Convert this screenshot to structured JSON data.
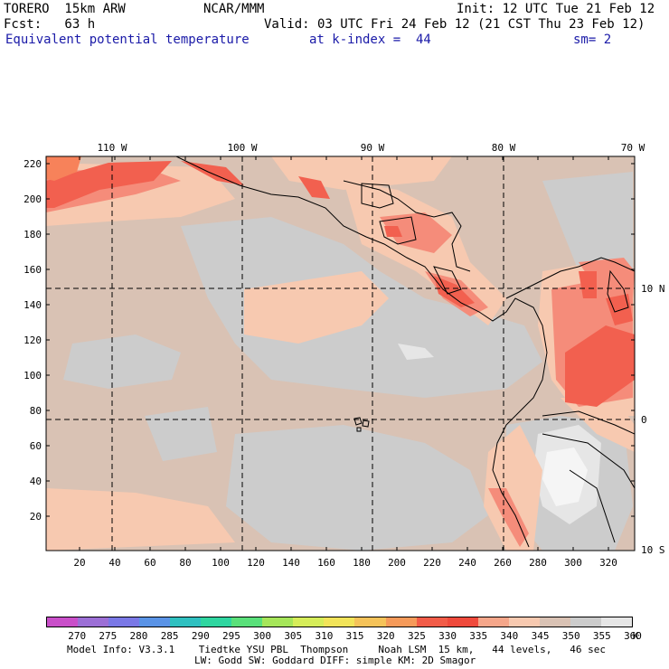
{
  "header": {
    "line1_left": "TORERO  15km ARW",
    "line1_mid": "NCAR/MMM",
    "line1_right": "Init: 12 UTC Tue 21 Feb 12",
    "line2_left": "Fcst:   63 h",
    "line2_right": "Valid: 03 UTC Fri 24 Feb 12 (21 CST Thu 23 Feb 12)",
    "line3_field": "Equivalent potential temperature",
    "line3_level": "at k-index =  44",
    "line3_sm": "sm= 2"
  },
  "map": {
    "top_lon_labels": [
      "110 W",
      "100 W",
      "90 W",
      "80 W",
      "70 W"
    ],
    "right_lat_labels": [
      "10 N",
      "0",
      "10 S"
    ],
    "left_y_ticks": [
      "220",
      "200",
      "180",
      "160",
      "140",
      "120",
      "100",
      "80",
      "60",
      "40",
      "20"
    ],
    "bottom_x_ticks": [
      "20",
      "40",
      "60",
      "80",
      "100",
      "120",
      "140",
      "160",
      "180",
      "200",
      "220",
      "240",
      "260",
      "280",
      "300",
      "320"
    ],
    "colors": {
      "c340": "#f7c9b0",
      "c345": "#d9c2b4",
      "c350": "#cccccc",
      "c355": "#e6e6e6",
      "c330": "#f2604f",
      "c335": "#f58c7a",
      "c325": "#f7825a",
      "c360": "#f5f5f5"
    }
  },
  "colorbar": {
    "labels": [
      "270",
      "275",
      "280",
      "285",
      "290",
      "295",
      "300",
      "305",
      "310",
      "315",
      "320",
      "325",
      "330",
      "335",
      "340",
      "345",
      "350",
      "355",
      "360",
      "K"
    ],
    "colors": [
      "#c94fc9",
      "#9c6fd6",
      "#7a78e6",
      "#5a93e6",
      "#2fc0c0",
      "#2fd6a0",
      "#5ae07a",
      "#a6e65a",
      "#d6ed5a",
      "#f2e45a",
      "#f5c35a",
      "#f59a5a",
      "#f25c48",
      "#ef4a3c",
      "#f5a68a",
      "#f7c9b0",
      "#d9c2b4",
      "#cccccc",
      "#e6e6e6",
      "#ffffff"
    ]
  },
  "footer": {
    "line1": "Model Info: V3.3.1    Tiedtke YSU PBL  Thompson     Noah LSM  15 km,   44 levels,   46 sec",
    "line2": "LW: Godd SW: Goddard DIFF: simple KM: 2D Smagor"
  }
}
